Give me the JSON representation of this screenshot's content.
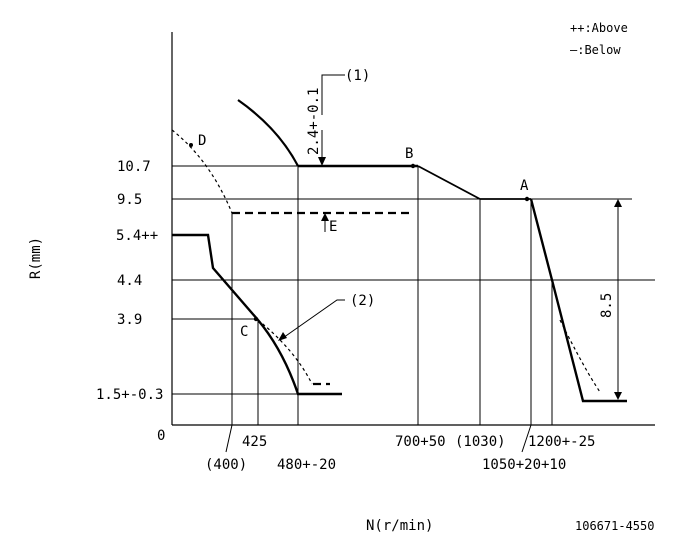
{
  "legend": {
    "above": "++:Above",
    "below": "—:Below"
  },
  "axes": {
    "y_label": "R(mm)",
    "x_label": "N(r/min)",
    "origin": "0"
  },
  "y_ticks": [
    "10.7",
    "9.5",
    "5.4++",
    "4.4",
    "3.9",
    "1.5+-0.3"
  ],
  "x_ticks": [
    "425",
    "(400)",
    "480+-20",
    "700+50",
    "(1030)",
    "1200+-25",
    "1050+20+10"
  ],
  "points": {
    "A": "A",
    "B": "B",
    "C": "C",
    "D": "D",
    "E": "E"
  },
  "notes": {
    "one": "(1)",
    "two": "(2)",
    "clearance": "2.4+-0.1",
    "span": "8.5"
  },
  "figure_id": "106671-4550"
}
